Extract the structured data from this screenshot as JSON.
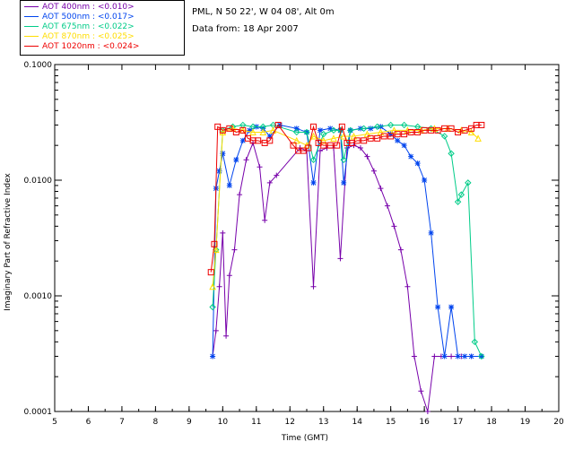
{
  "header": {
    "station": "PML, N 50 22', W 04 08', Alt 0m",
    "date": "Data from: 18 Apr 2007"
  },
  "chart_data": {
    "type": "line",
    "title": "",
    "xlabel": "Time (GMT)",
    "ylabel": "Imaginary Part of Refractive Index",
    "xlim": [
      5,
      20
    ],
    "ylim": [
      0.0001,
      0.1
    ],
    "yscale": "log",
    "xticks": [
      "5",
      "6",
      "7",
      "8",
      "9",
      "10",
      "11",
      "12",
      "13",
      "14",
      "15",
      "16",
      "17",
      "18",
      "19",
      "20"
    ],
    "yticks": [
      "0.0001",
      "0.0010",
      "0.0100",
      "0.1000"
    ],
    "series": [
      {
        "name": "AOT  400nm : <0.010>",
        "color": "#7700aa",
        "marker": "plus",
        "x": [
          9.7,
          9.8,
          9.9,
          10.0,
          10.1,
          10.2,
          10.35,
          10.5,
          10.7,
          10.9,
          11.1,
          11.25,
          11.4,
          11.6,
          12.3,
          12.5,
          12.7,
          12.9,
          13.1,
          13.3,
          13.5,
          13.7,
          13.9,
          14.1,
          14.3,
          14.5,
          14.7,
          14.9,
          15.1,
          15.3,
          15.5,
          15.7,
          15.9,
          16.1,
          16.3,
          16.5,
          16.8,
          17.1,
          17.4,
          17.7
        ],
        "y": [
          0.0003,
          0.0005,
          0.0012,
          0.0035,
          0.00045,
          0.0015,
          0.0025,
          0.0075,
          0.015,
          0.021,
          0.013,
          0.0045,
          0.0095,
          0.011,
          0.019,
          0.018,
          0.0012,
          0.018,
          0.019,
          0.019,
          0.0021,
          0.019,
          0.02,
          0.019,
          0.016,
          0.012,
          0.0085,
          0.006,
          0.004,
          0.0025,
          0.0012,
          0.0003,
          0.00015,
          0.0001,
          0.0003,
          0.0003,
          0.0003,
          0.0003,
          0.0003,
          0.0003
        ]
      },
      {
        "name": "AOT  500nm : <0.017>",
        "color": "#0044ee",
        "marker": "asterisk",
        "x": [
          9.7,
          9.8,
          9.9,
          10.0,
          10.2,
          10.4,
          10.6,
          10.8,
          11.0,
          11.2,
          11.4,
          11.7,
          12.2,
          12.5,
          12.7,
          12.9,
          13.2,
          13.5,
          13.6,
          13.8,
          14.1,
          14.4,
          14.7,
          15.0,
          15.2,
          15.4,
          15.6,
          15.8,
          16.0,
          16.2,
          16.4,
          16.6,
          16.8,
          17.0,
          17.2,
          17.4,
          17.7
        ],
        "y": [
          0.0003,
          0.0085,
          0.012,
          0.017,
          0.009,
          0.015,
          0.022,
          0.027,
          0.029,
          0.028,
          0.024,
          0.03,
          0.028,
          0.026,
          0.0095,
          0.027,
          0.028,
          0.027,
          0.0095,
          0.027,
          0.028,
          0.028,
          0.029,
          0.025,
          0.022,
          0.02,
          0.016,
          0.014,
          0.01,
          0.0035,
          0.0008,
          0.0003,
          0.0008,
          0.0003,
          0.0003,
          0.0003,
          0.0003
        ]
      },
      {
        "name": "AOT  675nm : <0.022>",
        "color": "#00cc88",
        "marker": "diamond",
        "x": [
          9.7,
          9.8,
          10.0,
          10.3,
          10.6,
          10.9,
          11.2,
          11.5,
          12.2,
          12.5,
          12.7,
          13.0,
          13.3,
          13.5,
          13.6,
          13.8,
          14.2,
          14.6,
          15.0,
          15.4,
          15.8,
          16.2,
          16.6,
          16.8,
          17.0,
          17.1,
          17.3,
          17.5,
          17.7
        ],
        "y": [
          0.0008,
          0.0025,
          0.027,
          0.029,
          0.03,
          0.029,
          0.029,
          0.03,
          0.026,
          0.026,
          0.015,
          0.025,
          0.027,
          0.027,
          0.015,
          0.027,
          0.028,
          0.029,
          0.03,
          0.03,
          0.029,
          0.028,
          0.024,
          0.017,
          0.0065,
          0.0075,
          0.0095,
          0.0004,
          0.0003
        ]
      },
      {
        "name": "AOT  870nm : <0.025>",
        "color": "#ffdd00",
        "marker": "triangle",
        "x": [
          9.7,
          9.8,
          10.0,
          10.3,
          10.6,
          10.9,
          11.2,
          11.5,
          12.2,
          12.5,
          12.7,
          13.0,
          13.3,
          13.6,
          13.9,
          14.3,
          14.7,
          15.1,
          15.5,
          15.9,
          16.3,
          16.7,
          17.1,
          17.4,
          17.6
        ],
        "y": [
          0.0012,
          0.0025,
          0.026,
          0.028,
          0.027,
          0.026,
          0.026,
          0.027,
          0.022,
          0.02,
          0.024,
          0.022,
          0.023,
          0.024,
          0.024,
          0.025,
          0.026,
          0.027,
          0.027,
          0.027,
          0.028,
          0.028,
          0.027,
          0.026,
          0.023
        ]
      },
      {
        "name": "AOT 1020nm : <0.024>",
        "color": "#ee0000",
        "marker": "square",
        "x": [
          9.65,
          9.75,
          9.85,
          10.0,
          10.2,
          10.4,
          10.6,
          10.75,
          10.9,
          11.05,
          11.25,
          11.4,
          11.65,
          12.1,
          12.25,
          12.4,
          12.55,
          12.7,
          12.85,
          13.0,
          13.2,
          13.4,
          13.55,
          13.7,
          13.85,
          14.0,
          14.2,
          14.4,
          14.6,
          14.8,
          15.0,
          15.2,
          15.4,
          15.6,
          15.8,
          16.0,
          16.2,
          16.4,
          16.6,
          16.8,
          17.0,
          17.2,
          17.4,
          17.55,
          17.7
        ],
        "y": [
          0.0016,
          0.0028,
          0.029,
          0.027,
          0.028,
          0.026,
          0.027,
          0.023,
          0.022,
          0.022,
          0.021,
          0.022,
          0.03,
          0.02,
          0.018,
          0.018,
          0.019,
          0.029,
          0.021,
          0.02,
          0.02,
          0.02,
          0.029,
          0.021,
          0.021,
          0.022,
          0.022,
          0.023,
          0.023,
          0.024,
          0.024,
          0.025,
          0.025,
          0.026,
          0.026,
          0.027,
          0.027,
          0.027,
          0.028,
          0.028,
          0.026,
          0.027,
          0.028,
          0.03,
          0.03
        ]
      }
    ]
  }
}
